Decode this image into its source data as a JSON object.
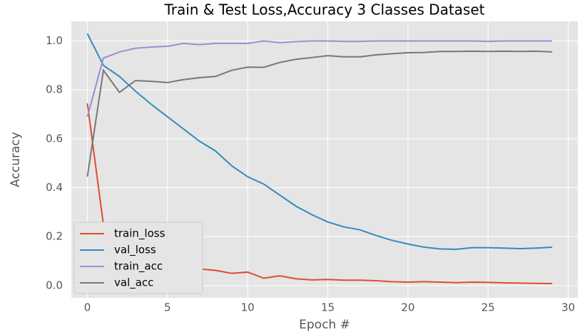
{
  "chart_data": {
    "type": "line",
    "title": "Train & Test  Loss,Accuracy  3 Classes Dataset",
    "xlabel": "Epoch #",
    "ylabel": "Accuracy",
    "x": [
      0,
      1,
      2,
      3,
      4,
      5,
      6,
      7,
      8,
      9,
      10,
      11,
      12,
      13,
      14,
      15,
      16,
      17,
      18,
      19,
      20,
      21,
      22,
      23,
      24,
      25,
      26,
      27,
      28,
      29
    ],
    "series": [
      {
        "name": "train_loss",
        "color": "#E24A33",
        "values": [
          0.745,
          0.25,
          0.15,
          0.11,
          0.09,
          0.075,
          0.068,
          0.068,
          0.062,
          0.05,
          0.055,
          0.03,
          0.04,
          0.028,
          0.023,
          0.025,
          0.022,
          0.022,
          0.02,
          0.016,
          0.014,
          0.016,
          0.014,
          0.012,
          0.014,
          0.013,
          0.011,
          0.01,
          0.009,
          0.008
        ]
      },
      {
        "name": "val_loss",
        "color": "#348ABD",
        "values": [
          1.03,
          0.9,
          0.855,
          0.795,
          0.74,
          0.69,
          0.64,
          0.59,
          0.55,
          0.49,
          0.445,
          0.415,
          0.37,
          0.325,
          0.29,
          0.26,
          0.24,
          0.228,
          0.205,
          0.185,
          0.17,
          0.157,
          0.15,
          0.148,
          0.155,
          0.155,
          0.153,
          0.151,
          0.153,
          0.157
        ]
      },
      {
        "name": "train_acc",
        "color": "#988ED5",
        "values": [
          0.69,
          0.93,
          0.955,
          0.97,
          0.975,
          0.978,
          0.99,
          0.985,
          0.99,
          0.99,
          0.99,
          1.0,
          0.993,
          0.997,
          1.0,
          1.0,
          0.998,
          0.998,
          1.0,
          1.0,
          1.0,
          1.0,
          1.0,
          1.0,
          1.0,
          0.998,
          1.0,
          1.0,
          1.0,
          1.0
        ]
      },
      {
        "name": "val_acc",
        "color": "#777777",
        "values": [
          0.445,
          0.88,
          0.79,
          0.838,
          0.835,
          0.83,
          0.842,
          0.85,
          0.855,
          0.88,
          0.893,
          0.892,
          0.912,
          0.925,
          0.932,
          0.94,
          0.935,
          0.935,
          0.943,
          0.948,
          0.952,
          0.953,
          0.957,
          0.957,
          0.958,
          0.957,
          0.958,
          0.957,
          0.958,
          0.955
        ]
      }
    ],
    "xlim": [
      -1,
      30.6
    ],
    "ylim": [
      -0.05,
      1.08
    ],
    "xticks": [
      0,
      5,
      10,
      15,
      20,
      25,
      30
    ],
    "yticks": [
      {
        "value": 0,
        "label": "0.0"
      },
      0.2,
      0.4,
      0.6,
      0.8,
      {
        "value": 1,
        "label": "1.0"
      }
    ],
    "grid": true,
    "legend": "lower left"
  }
}
